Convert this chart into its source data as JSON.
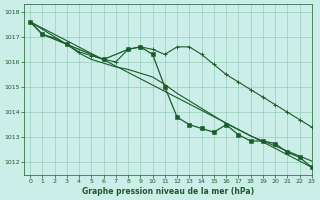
{
  "background_color": "#cceee8",
  "grid_color": "#99ccbb",
  "line_color": "#1a5c2a",
  "title": "Graphe pression niveau de la mer (hPa)",
  "xlim": [
    -0.5,
    23
  ],
  "ylim": [
    1011.5,
    1018.3
  ],
  "yticks": [
    1012,
    1013,
    1014,
    1015,
    1016,
    1017,
    1018
  ],
  "xticks": [
    0,
    1,
    2,
    3,
    4,
    5,
    6,
    7,
    8,
    9,
    10,
    11,
    12,
    13,
    14,
    15,
    16,
    17,
    18,
    19,
    20,
    21,
    22,
    23
  ],
  "line1": {
    "x": [
      0,
      1,
      2,
      3,
      4,
      5,
      6,
      7,
      8,
      9,
      10,
      11,
      12,
      13,
      14,
      15,
      16,
      17,
      18,
      19,
      20,
      21,
      22,
      23
    ],
    "y": [
      1017.6,
      1017.1,
      1016.95,
      1016.7,
      1016.35,
      1016.1,
      1015.95,
      1015.8,
      1015.7,
      1015.55,
      1015.4,
      1015.1,
      1014.75,
      1014.45,
      1014.15,
      1013.85,
      1013.55,
      1013.3,
      1013.05,
      1012.85,
      1012.65,
      1012.45,
      1012.25,
      1012.05
    ]
  },
  "line2": {
    "x": [
      0,
      3,
      4,
      5,
      6,
      7,
      8,
      9,
      10,
      11,
      12,
      13,
      14,
      15,
      16,
      17,
      18,
      19,
      20,
      21,
      22,
      23
    ],
    "y": [
      1017.6,
      1016.7,
      1016.4,
      1016.25,
      1016.1,
      1016.0,
      1016.5,
      1016.6,
      1016.5,
      1016.3,
      1016.6,
      1016.6,
      1016.3,
      1015.9,
      1015.5,
      1015.2,
      1014.9,
      1014.6,
      1014.3,
      1014.0,
      1013.7,
      1013.4
    ]
  },
  "line3": {
    "x": [
      0,
      1,
      3,
      6,
      8,
      9,
      10,
      11,
      12,
      13,
      14,
      15,
      16,
      17,
      18,
      19,
      20,
      21,
      22,
      23
    ],
    "y": [
      1017.6,
      1017.1,
      1016.7,
      1016.1,
      1016.5,
      1016.6,
      1016.3,
      1015.0,
      1013.8,
      1013.5,
      1013.35,
      1013.2,
      1013.5,
      1013.1,
      1012.85,
      1012.85,
      1012.75,
      1012.4,
      1012.2,
      1011.8
    ]
  },
  "line4": {
    "x": [
      0,
      23
    ],
    "y": [
      1017.6,
      1011.8
    ]
  }
}
